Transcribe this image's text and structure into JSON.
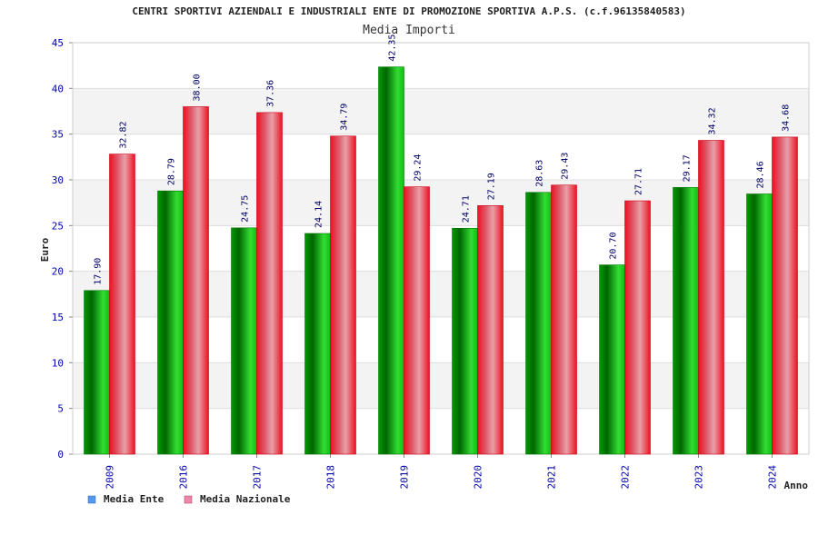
{
  "chart_data": {
    "type": "bar",
    "title": "CENTRI SPORTIVI AZIENDALI E INDUSTRIALI ENTE DI PROMOZIONE SPORTIVA A.P.S. (c.f.96135840583)",
    "subtitle": "Media Importi",
    "xlabel": "Anno",
    "ylabel": "Euro",
    "ylim": [
      0,
      45
    ],
    "yticks": [
      0,
      5,
      10,
      15,
      20,
      25,
      30,
      35,
      40,
      45
    ],
    "categories": [
      "2009",
      "2016",
      "2017",
      "2018",
      "2019",
      "2020",
      "2021",
      "2022",
      "2023",
      "2024"
    ],
    "series": [
      {
        "name": "Media Ente",
        "values": [
          17.9,
          28.79,
          24.75,
          24.14,
          42.35,
          24.71,
          28.63,
          20.7,
          29.17,
          28.46
        ],
        "labels": [
          "17.90",
          "28.79",
          "24.75",
          "24.14",
          "42.35",
          "24.71",
          "28.63",
          "20.70",
          "29.17",
          "28.46"
        ]
      },
      {
        "name": "Media Nazionale",
        "values": [
          32.82,
          38.0,
          37.36,
          34.79,
          29.24,
          27.19,
          29.43,
          27.71,
          34.32,
          34.68
        ],
        "labels": [
          "32.82",
          "38.00",
          "37.36",
          "34.79",
          "29.24",
          "27.19",
          "29.43",
          "27.71",
          "34.32",
          "34.68"
        ]
      }
    ],
    "grid": true,
    "legend_position": "bottom-left",
    "colors": {
      "ente_dark": "#00a000",
      "ente_light": "#22ee22",
      "naz_dark": "#ee0000",
      "naz_light": "#e8a0a8",
      "band": "#f3f3f3",
      "tick_text": "#0000aa",
      "legend_ente": "#5599ee",
      "legend_naz": "#ee88aa"
    }
  }
}
